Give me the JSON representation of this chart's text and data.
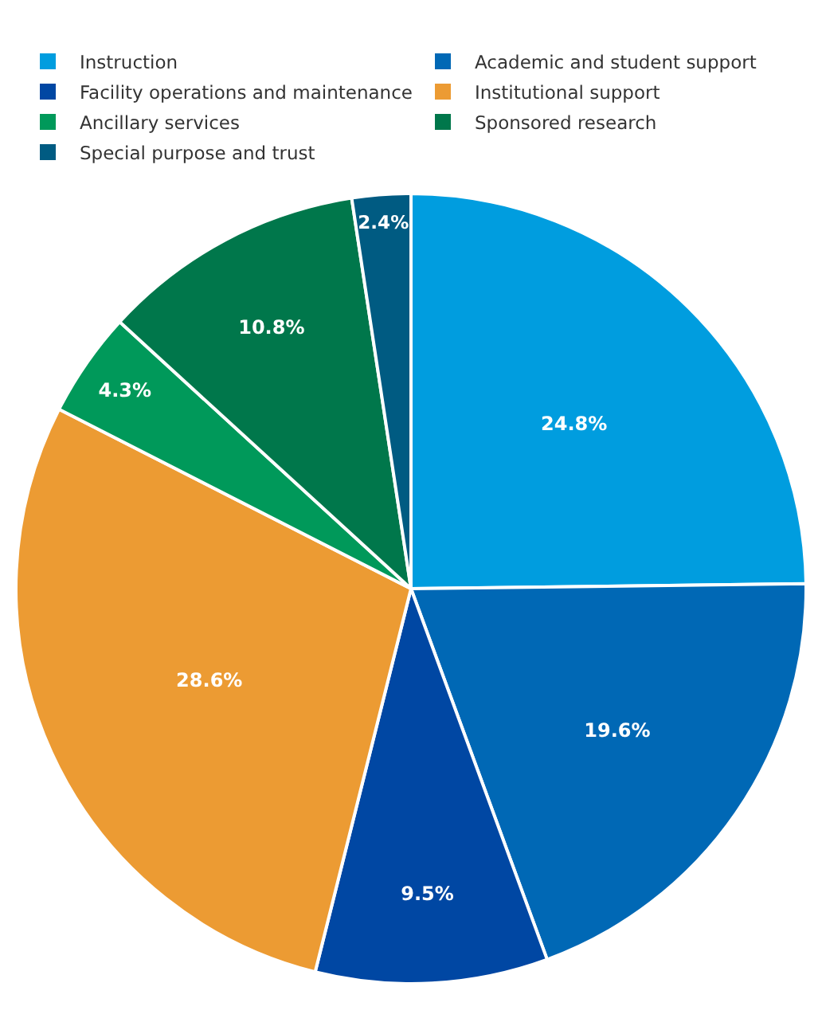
{
  "chart_data": {
    "type": "pie",
    "categories": [
      "Instruction",
      "Academic and student support",
      "Facility operations and maintenance",
      "Institutional support",
      "Ancillary services",
      "Sponsored research",
      "Special purpose and trust"
    ],
    "values": [
      24.8,
      19.6,
      9.5,
      28.6,
      4.3,
      10.8,
      2.4
    ],
    "value_labels": [
      "24.8%",
      "19.6%",
      "9.5%",
      "28.6%",
      "4.3%",
      "10.8%",
      "2.4%"
    ],
    "colors": [
      "#009ddf",
      "#0068b5",
      "#0047a3",
      "#ec9b33",
      "#00995a",
      "#00774b",
      "#005b82"
    ],
    "legend": "top"
  }
}
